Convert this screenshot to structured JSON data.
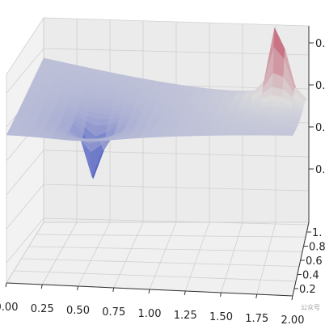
{
  "chart_data": {
    "type": "surface",
    "title": "",
    "xlabel": "",
    "ylabel": "",
    "zlabel": "",
    "x_ticks": [
      "0.00",
      "0.25",
      "0.50",
      "0.75",
      "1.00",
      "1.25",
      "1.50",
      "1.75",
      "2.00"
    ],
    "y_ticks": [
      "0.2",
      "0.4",
      "0.6",
      "0.8",
      "1."
    ],
    "z_ticks": [
      "0.",
      "0.",
      "0.",
      "0."
    ],
    "xlim": [
      0,
      2
    ],
    "ylim": [
      0,
      1
    ],
    "colormap": "coolwarm",
    "peaks": [
      {
        "kind": "maximum",
        "x": 1.8,
        "y": 0.8
      },
      {
        "kind": "minimum",
        "x": 0.55,
        "y": 0.3
      }
    ],
    "grid": true
  },
  "watermark": "公众号"
}
